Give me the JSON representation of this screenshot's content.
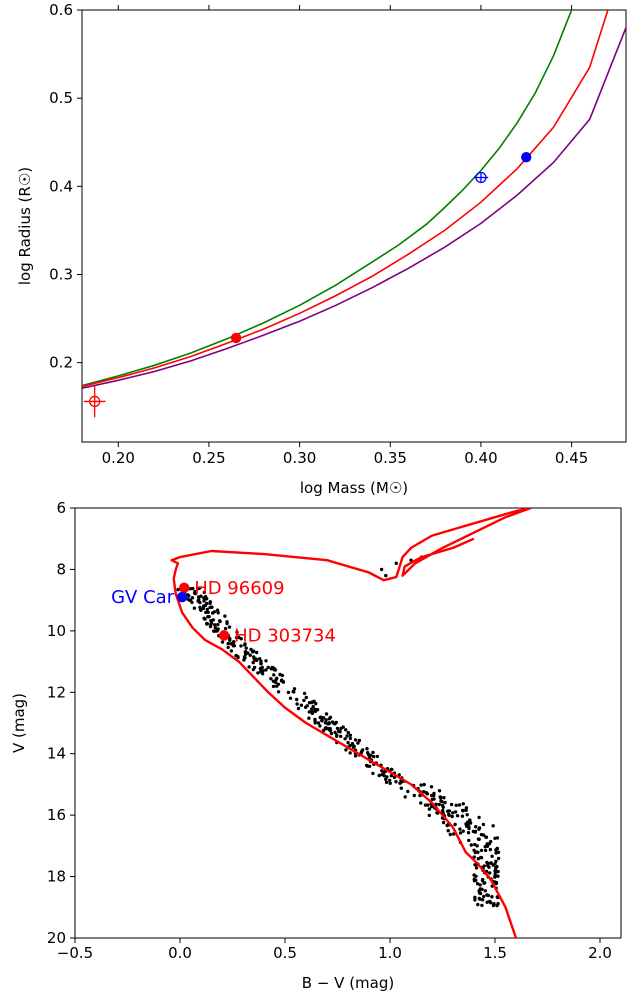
{
  "chart_data": [
    {
      "type": "line",
      "title": "",
      "xlabel": "log Mass (M☉)",
      "ylabel": "log Radius (R☉)",
      "xlim": [
        0.18,
        0.48
      ],
      "ylim": [
        0.11,
        0.6
      ],
      "x_ticks": [
        0.2,
        0.25,
        0.3,
        0.35,
        0.4,
        0.45
      ],
      "x_tick_labels": [
        "0.20",
        "0.25",
        "0.30",
        "0.35",
        "0.40",
        "0.45"
      ],
      "y_ticks": [
        0.2,
        0.3,
        0.4,
        0.5,
        0.6
      ],
      "y_tick_labels": [
        "0.2",
        "0.3",
        "0.4",
        "0.5",
        "0.6"
      ],
      "grid": false,
      "legend": "none",
      "series": [
        {
          "color": "#008000",
          "x": [
            0.18,
            0.2,
            0.22,
            0.24,
            0.26,
            0.28,
            0.3,
            0.32,
            0.34,
            0.355,
            0.37,
            0.38,
            0.39,
            0.4,
            0.41,
            0.42,
            0.43,
            0.44,
            0.45
          ],
          "y": [
            0.174,
            0.185,
            0.197,
            0.211,
            0.227,
            0.245,
            0.265,
            0.288,
            0.314,
            0.334,
            0.357,
            0.376,
            0.396,
            0.418,
            0.443,
            0.472,
            0.506,
            0.548,
            0.6
          ]
        },
        {
          "color": "#ff0000",
          "x": [
            0.18,
            0.2,
            0.22,
            0.24,
            0.26,
            0.28,
            0.3,
            0.32,
            0.34,
            0.36,
            0.38,
            0.4,
            0.42,
            0.44,
            0.46,
            0.47
          ],
          "y": [
            0.173,
            0.183,
            0.194,
            0.207,
            0.222,
            0.238,
            0.256,
            0.276,
            0.298,
            0.323,
            0.35,
            0.382,
            0.42,
            0.467,
            0.535,
            0.6
          ]
        },
        {
          "color": "#800080",
          "x": [
            0.18,
            0.2,
            0.22,
            0.24,
            0.26,
            0.28,
            0.3,
            0.32,
            0.34,
            0.36,
            0.38,
            0.4,
            0.42,
            0.44,
            0.46,
            0.48
          ],
          "y": [
            0.171,
            0.18,
            0.19,
            0.202,
            0.216,
            0.231,
            0.247,
            0.265,
            0.285,
            0.307,
            0.331,
            0.358,
            0.39,
            0.427,
            0.476,
            0.58
          ]
        }
      ],
      "points": [
        {
          "x": 0.265,
          "y": 0.228,
          "color": "#ff0000",
          "style": "filled"
        },
        {
          "x": 0.425,
          "y": 0.433,
          "color": "#0000ff",
          "style": "filled"
        },
        {
          "x": 0.4,
          "y": 0.41,
          "color": "#0000ff",
          "style": "open-cross",
          "xerr": 0.004,
          "yerr": 0.005
        },
        {
          "x": 0.187,
          "y": 0.156,
          "color": "#ff0000",
          "style": "open-cross",
          "xerr": 0.006,
          "yerr": 0.018
        }
      ]
    },
    {
      "type": "scatter",
      "title": "",
      "xlabel": "B − V (mag)",
      "ylabel": "V (mag)",
      "xlim": [
        -0.5,
        2.1
      ],
      "ylim": [
        20,
        6
      ],
      "x_ticks": [
        -0.5,
        0.0,
        0.5,
        1.0,
        1.5,
        2.0
      ],
      "x_tick_labels": [
        "−0.5",
        "0.0",
        "0.5",
        "1.0",
        "1.5",
        "2.0"
      ],
      "y_ticks": [
        6,
        8,
        10,
        12,
        14,
        16,
        18,
        20
      ],
      "y_tick_labels": [
        "6",
        "8",
        "10",
        "12",
        "14",
        "16",
        "18",
        "20"
      ],
      "grid": false,
      "legend": "none",
      "isochrone": {
        "color": "#ff0000",
        "x": [
          1.6,
          1.55,
          1.48,
          1.42,
          1.36,
          1.3,
          1.2,
          1.1,
          1.0,
          0.9,
          0.8,
          0.7,
          0.6,
          0.5,
          0.42,
          0.35,
          0.28,
          0.2,
          0.12,
          0.06,
          0.01,
          -0.02,
          -0.03,
          -0.02,
          -0.01,
          -0.04,
          0.0,
          0.15,
          0.4,
          0.7,
          0.9,
          0.97,
          1.03,
          1.06,
          1.1,
          1.2,
          1.35,
          1.5,
          1.6,
          1.67,
          1.55,
          1.4,
          1.25,
          1.12,
          1.06,
          1.07,
          1.15,
          1.3,
          1.4
        ],
        "y": [
          20.0,
          19.0,
          18.1,
          17.6,
          17.2,
          16.4,
          15.6,
          15.0,
          14.6,
          14.2,
          13.8,
          13.4,
          13.0,
          12.5,
          12.0,
          11.5,
          11.0,
          10.6,
          10.3,
          9.9,
          9.4,
          8.8,
          8.3,
          8.0,
          7.8,
          7.7,
          7.6,
          7.4,
          7.5,
          7.7,
          8.1,
          8.35,
          8.25,
          7.6,
          7.3,
          6.9,
          6.6,
          6.3,
          6.1,
          6.0,
          6.3,
          6.8,
          7.3,
          7.8,
          8.2,
          7.9,
          7.6,
          7.3,
          7.0
        ]
      },
      "highlighted_stars": [
        {
          "name": "HD 96609",
          "x": 0.02,
          "y": 8.6,
          "color": "#ff0000"
        },
        {
          "name": "HD 303734",
          "x": 0.21,
          "y": 10.15,
          "color": "#ff0000"
        },
        {
          "name": "GV Car",
          "x": 0.01,
          "y": 8.9,
          "color": "#0000ff"
        }
      ],
      "field_stars_note_count": 520
    }
  ]
}
